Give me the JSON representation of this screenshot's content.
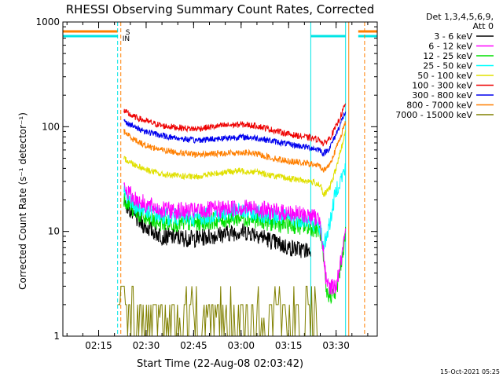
{
  "chart_data": {
    "type": "line",
    "title": "RHESSI Observing Summary Count Rates, Corrected",
    "xlabel": "Start Time (22-Aug-08 02:03:42)",
    "ylabel": "Corrected Count Rate (s⁻¹ detector⁻¹)",
    "y_scale": "log",
    "ylim": [
      1,
      1000
    ],
    "y_ticks": [
      "1",
      "10",
      "100",
      "1000"
    ],
    "xlim": [
      "02:03:42",
      "03:43:00"
    ],
    "x_ticks": [
      "02:15",
      "02:30",
      "02:45",
      "03:00",
      "03:15",
      "03:30"
    ],
    "grid": false,
    "legend_header": [
      "Det 1,3,4,5,6,9,",
      "Att 0"
    ],
    "legend_position": "right",
    "timestamp": "15-Oct-2021 05:25",
    "markers": [
      {
        "label": "S",
        "color": "#ff7f00"
      },
      {
        "label": "IN",
        "color": "#00e5e5"
      }
    ],
    "series": [
      {
        "name": "3 - 6 keV",
        "color": "#000000",
        "points": [
          [
            "02:23",
            20
          ],
          [
            "02:26",
            14
          ],
          [
            "02:30",
            11
          ],
          [
            "02:35",
            9
          ],
          [
            "02:45",
            8.5
          ],
          [
            "02:55",
            9.5
          ],
          [
            "03:00",
            10
          ],
          [
            "03:05",
            9.5
          ],
          [
            "03:10",
            8
          ],
          [
            "03:15",
            7
          ],
          [
            "03:22",
            6.5
          ]
        ]
      },
      {
        "name": "6 - 12 keV",
        "color": "#ff00ff",
        "points": [
          [
            "02:23",
            26
          ],
          [
            "02:26",
            21
          ],
          [
            "02:30",
            18
          ],
          [
            "02:35",
            16
          ],
          [
            "02:45",
            15.5
          ],
          [
            "02:55",
            16.5
          ],
          [
            "03:00",
            17
          ],
          [
            "03:05",
            16.5
          ],
          [
            "03:10",
            15.5
          ],
          [
            "03:15",
            15
          ],
          [
            "03:22",
            14
          ],
          [
            "03:25",
            13
          ],
          [
            "03:27",
            3
          ],
          [
            "03:30",
            3
          ],
          [
            "03:33",
            9
          ]
        ]
      },
      {
        "name": "12 - 25 keV",
        "color": "#00e000",
        "points": [
          [
            "02:23",
            21
          ],
          [
            "02:26",
            16
          ],
          [
            "02:30",
            13
          ],
          [
            "02:35",
            12
          ],
          [
            "02:45",
            12
          ],
          [
            "02:55",
            13
          ],
          [
            "03:00",
            13.5
          ],
          [
            "03:05",
            13
          ],
          [
            "03:10",
            12
          ],
          [
            "03:15",
            11.5
          ],
          [
            "03:22",
            11
          ],
          [
            "03:25",
            10
          ],
          [
            "03:27",
            2.5
          ],
          [
            "03:30",
            2.5
          ],
          [
            "03:33",
            9.5
          ]
        ]
      },
      {
        "name": "25 - 50 keV",
        "color": "#00ffff",
        "points": [
          [
            "02:23",
            24
          ],
          [
            "02:26",
            18
          ],
          [
            "02:30",
            15.5
          ],
          [
            "02:35",
            14
          ],
          [
            "02:45",
            13.5
          ],
          [
            "02:55",
            15
          ],
          [
            "03:00",
            15.5
          ],
          [
            "03:05",
            15
          ],
          [
            "03:10",
            14
          ],
          [
            "03:15",
            13.5
          ],
          [
            "03:22",
            12.5
          ],
          [
            "03:25",
            11
          ],
          [
            "03:26",
            7
          ],
          [
            "03:28",
            12
          ],
          [
            "03:30",
            25
          ],
          [
            "03:33",
            40
          ]
        ]
      },
      {
        "name": "50 - 100 keV",
        "color": "#e0e000",
        "points": [
          [
            "02:23",
            50
          ],
          [
            "02:26",
            44
          ],
          [
            "02:30",
            39
          ],
          [
            "02:35",
            35
          ],
          [
            "02:45",
            33
          ],
          [
            "02:55",
            37
          ],
          [
            "03:00",
            38
          ],
          [
            "03:05",
            37
          ],
          [
            "03:10",
            34
          ],
          [
            "03:15",
            32
          ],
          [
            "03:22",
            30
          ],
          [
            "03:25",
            28
          ],
          [
            "03:26",
            22
          ],
          [
            "03:28",
            26
          ],
          [
            "03:30",
            40
          ],
          [
            "03:33",
            90
          ]
        ]
      },
      {
        "name": "100 - 300 keV",
        "color": "#ee0000",
        "points": [
          [
            "02:23",
            140
          ],
          [
            "02:26",
            125
          ],
          [
            "02:30",
            113
          ],
          [
            "02:35",
            102
          ],
          [
            "02:45",
            95
          ],
          [
            "02:55",
            103
          ],
          [
            "03:00",
            105
          ],
          [
            "03:05",
            102
          ],
          [
            "03:10",
            93
          ],
          [
            "03:15",
            85
          ],
          [
            "03:22",
            78
          ],
          [
            "03:25",
            75
          ],
          [
            "03:26",
            68
          ],
          [
            "03:28",
            78
          ],
          [
            "03:30",
            100
          ],
          [
            "03:33",
            165
          ]
        ]
      },
      {
        "name": "300 - 800 keV",
        "color": "#0000ee",
        "points": [
          [
            "02:23",
            115
          ],
          [
            "02:26",
            100
          ],
          [
            "02:30",
            90
          ],
          [
            "02:35",
            82
          ],
          [
            "02:45",
            74
          ],
          [
            "02:55",
            78
          ],
          [
            "03:00",
            80
          ],
          [
            "03:05",
            78
          ],
          [
            "03:10",
            73
          ],
          [
            "03:15",
            68
          ],
          [
            "03:22",
            63
          ],
          [
            "03:25",
            60
          ],
          [
            "03:26",
            55
          ],
          [
            "03:28",
            63
          ],
          [
            "03:30",
            85
          ],
          [
            "03:33",
            140
          ]
        ]
      },
      {
        "name": "800 - 7000 keV",
        "color": "#ff7f00",
        "points": [
          [
            "02:23",
            90
          ],
          [
            "02:26",
            76
          ],
          [
            "02:30",
            66
          ],
          [
            "02:35",
            60
          ],
          [
            "02:45",
            54
          ],
          [
            "02:55",
            56
          ],
          [
            "03:00",
            57
          ],
          [
            "03:05",
            55
          ],
          [
            "03:10",
            50
          ],
          [
            "03:15",
            47
          ],
          [
            "03:22",
            44
          ],
          [
            "03:25",
            42
          ],
          [
            "03:26",
            38
          ],
          [
            "03:28",
            44
          ],
          [
            "03:30",
            62
          ],
          [
            "03:33",
            110
          ]
        ]
      },
      {
        "name": "7000 - 15000 keV",
        "color": "#808000",
        "points": [
          [
            "02:21",
            3
          ],
          [
            "02:22",
            2
          ],
          [
            "02:25",
            1.6
          ],
          [
            "02:30",
            1.5
          ],
          [
            "02:40",
            1.3
          ],
          [
            "02:50",
            1.8
          ],
          [
            "03:00",
            1.7
          ],
          [
            "03:10",
            1.6
          ],
          [
            "03:15",
            1.8
          ],
          [
            "03:20",
            1.6
          ],
          [
            "03:24",
            1
          ]
        ]
      }
    ]
  }
}
